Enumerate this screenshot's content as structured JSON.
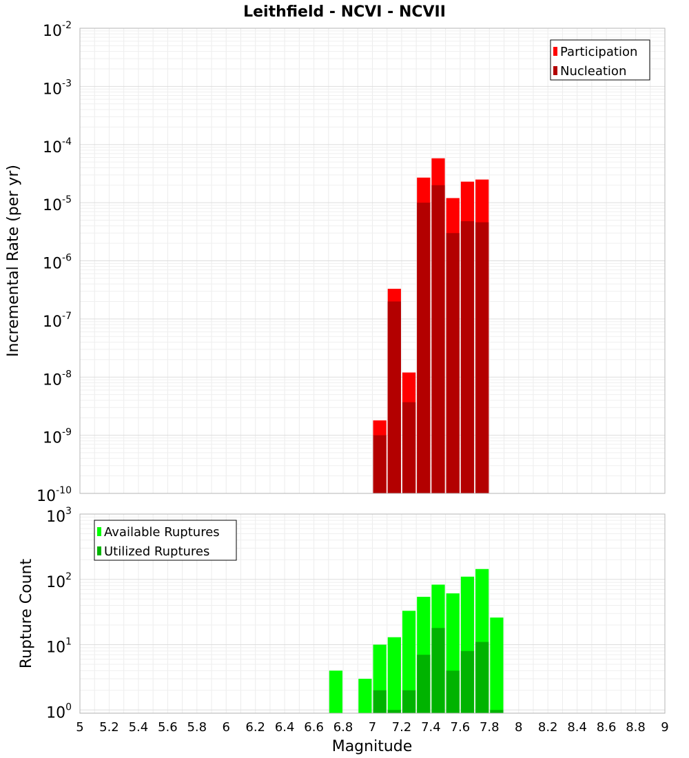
{
  "chart_data": {
    "title": "Leithfield - NCVI - NCVII",
    "xlabel": "Magnitude",
    "x_ticks": [
      "5",
      "5.2",
      "5.4",
      "5.6",
      "5.8",
      "6",
      "6.2",
      "6.4",
      "6.6",
      "6.8",
      "7",
      "7.2",
      "7.4",
      "7.6",
      "7.8",
      "8",
      "8.2",
      "8.4",
      "8.6",
      "8.8",
      "9"
    ],
    "xlim": [
      5,
      9
    ],
    "bin_width": 0.1,
    "panels": [
      {
        "type": "bar",
        "ylabel": "Incremental Rate (per yr)",
        "yscale": "log",
        "ylim_exp": [
          -10,
          -2
        ],
        "y_ticks": [
          {
            "base": "10",
            "exp": "-2"
          },
          {
            "base": "10",
            "exp": "-3"
          },
          {
            "base": "10",
            "exp": "-4"
          },
          {
            "base": "10",
            "exp": "-5"
          },
          {
            "base": "10",
            "exp": "-6"
          },
          {
            "base": "10",
            "exp": "-7"
          },
          {
            "base": "10",
            "exp": "-8"
          },
          {
            "base": "10",
            "exp": "-9"
          },
          {
            "base": "10",
            "exp": "-10"
          }
        ],
        "legend_position": "top-right",
        "x": [
          7.05,
          7.15,
          7.25,
          7.35,
          7.45,
          7.55,
          7.65,
          7.75
        ],
        "series": [
          {
            "name": "Participation",
            "color": "#ff0000",
            "values": [
              1.8e-09,
              3.3e-07,
              1.2e-08,
              2.7e-05,
              5.8e-05,
              1.2e-05,
              2.3e-05,
              2.5e-05
            ]
          },
          {
            "name": "Nucleation",
            "color": "#b30000",
            "values": [
              1e-09,
              2e-07,
              3.7e-09,
              1e-05,
              2e-05,
              3e-06,
              4.8e-06,
              4.6e-06
            ]
          }
        ]
      },
      {
        "type": "bar",
        "ylabel": "Rupture Count",
        "yscale": "log",
        "ylim_exp": [
          -0.05,
          3
        ],
        "y_ticks": [
          {
            "base": "10",
            "exp": "3"
          },
          {
            "base": "10",
            "exp": "2"
          },
          {
            "base": "10",
            "exp": "1"
          },
          {
            "base": "10",
            "exp": "0"
          }
        ],
        "legend_position": "top-left",
        "x": [
          6.75,
          6.95,
          7.05,
          7.15,
          7.25,
          7.35,
          7.45,
          7.55,
          7.65,
          7.75,
          7.85
        ],
        "series": [
          {
            "name": "Available Ruptures",
            "color": "#00ff00",
            "values": [
              4,
              3,
              10,
              13,
              33,
              54,
              83,
              61,
              110,
              144,
              26
            ]
          },
          {
            "name": "Utilized Ruptures",
            "color": "#00b300",
            "values": [
              null,
              null,
              2,
              1,
              2,
              7,
              18,
              4,
              8,
              11,
              1
            ]
          }
        ]
      }
    ]
  }
}
